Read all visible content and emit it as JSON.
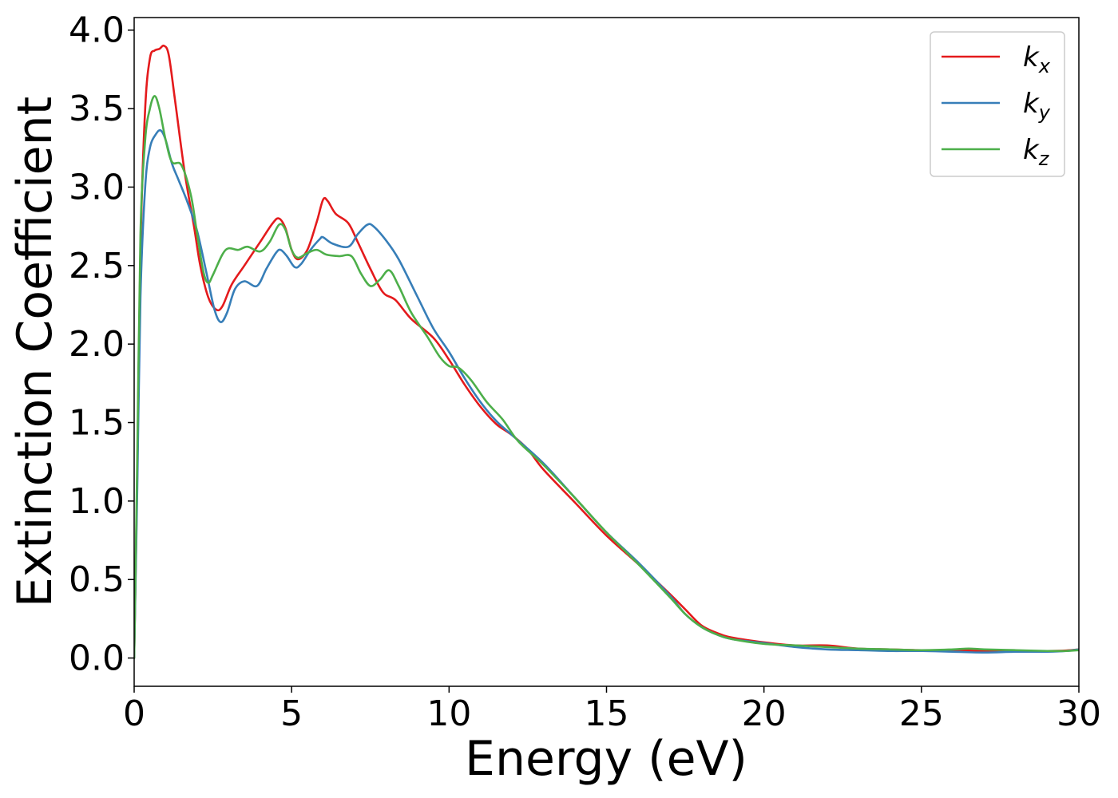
{
  "chart_data": {
    "type": "line",
    "title": "",
    "xlabel": "Energy (eV)",
    "ylabel": "Extinction Coefficient",
    "xlim": [
      0,
      30
    ],
    "ylim": [
      -0.18,
      4.08
    ],
    "xticks": [
      0,
      5,
      10,
      15,
      20,
      25,
      30
    ],
    "xtick_labels": [
      "0",
      "5",
      "10",
      "15",
      "20",
      "25",
      "30"
    ],
    "yticks": [
      0.0,
      0.5,
      1.0,
      1.5,
      2.0,
      2.5,
      3.0,
      3.5,
      4.0
    ],
    "ytick_labels": [
      "0.0",
      "0.5",
      "1.0",
      "1.5",
      "2.0",
      "2.5",
      "3.0",
      "3.5",
      "4.0"
    ],
    "grid": false,
    "legend_position": "top-right",
    "series": [
      {
        "name": "k_x",
        "label_base": "k",
        "label_sub": "x",
        "color": "#e41a1c",
        "points": [
          [
            0,
            0
          ],
          [
            0.1,
            1.2
          ],
          [
            0.2,
            2.6
          ],
          [
            0.35,
            3.5
          ],
          [
            0.5,
            3.82
          ],
          [
            0.65,
            3.87
          ],
          [
            0.8,
            3.88
          ],
          [
            0.95,
            3.9
          ],
          [
            1.1,
            3.84
          ],
          [
            1.3,
            3.55
          ],
          [
            1.6,
            3.1
          ],
          [
            1.9,
            2.75
          ],
          [
            2.1,
            2.5
          ],
          [
            2.35,
            2.3
          ],
          [
            2.6,
            2.22
          ],
          [
            2.8,
            2.24
          ],
          [
            3.1,
            2.38
          ],
          [
            3.5,
            2.5
          ],
          [
            4.0,
            2.65
          ],
          [
            4.4,
            2.77
          ],
          [
            4.6,
            2.8
          ],
          [
            4.8,
            2.74
          ],
          [
            5.0,
            2.6
          ],
          [
            5.2,
            2.54
          ],
          [
            5.5,
            2.6
          ],
          [
            5.8,
            2.78
          ],
          [
            6.0,
            2.92
          ],
          [
            6.15,
            2.91
          ],
          [
            6.4,
            2.83
          ],
          [
            6.8,
            2.77
          ],
          [
            7.1,
            2.65
          ],
          [
            7.5,
            2.48
          ],
          [
            7.9,
            2.33
          ],
          [
            8.3,
            2.28
          ],
          [
            8.8,
            2.16
          ],
          [
            9.5,
            2.04
          ],
          [
            10.0,
            1.9
          ],
          [
            10.5,
            1.74
          ],
          [
            11.0,
            1.6
          ],
          [
            11.5,
            1.49
          ],
          [
            12.0,
            1.42
          ],
          [
            12.5,
            1.33
          ],
          [
            13.0,
            1.2
          ],
          [
            14.0,
            0.99
          ],
          [
            15.0,
            0.78
          ],
          [
            16.0,
            0.6
          ],
          [
            17.0,
            0.41
          ],
          [
            17.5,
            0.31
          ],
          [
            18.0,
            0.21
          ],
          [
            18.5,
            0.16
          ],
          [
            19.0,
            0.13
          ],
          [
            20.0,
            0.1
          ],
          [
            21.0,
            0.08
          ],
          [
            22.0,
            0.08
          ],
          [
            23.0,
            0.06
          ],
          [
            24.0,
            0.055
          ],
          [
            25.0,
            0.05
          ],
          [
            26.0,
            0.05
          ],
          [
            27.0,
            0.045
          ],
          [
            28.0,
            0.045
          ],
          [
            29.0,
            0.045
          ],
          [
            29.6,
            0.048
          ],
          [
            30.0,
            0.055
          ]
        ]
      },
      {
        "name": "k_y",
        "label_base": "k",
        "label_sub": "y",
        "color": "#377eb8",
        "points": [
          [
            0,
            0
          ],
          [
            0.1,
            1.1
          ],
          [
            0.2,
            2.3
          ],
          [
            0.35,
            3.0
          ],
          [
            0.5,
            3.25
          ],
          [
            0.7,
            3.34
          ],
          [
            0.85,
            3.36
          ],
          [
            1.0,
            3.3
          ],
          [
            1.2,
            3.15
          ],
          [
            1.4,
            3.05
          ],
          [
            1.7,
            2.9
          ],
          [
            2.0,
            2.72
          ],
          [
            2.3,
            2.45
          ],
          [
            2.55,
            2.22
          ],
          [
            2.75,
            2.14
          ],
          [
            2.95,
            2.2
          ],
          [
            3.2,
            2.35
          ],
          [
            3.5,
            2.4
          ],
          [
            3.9,
            2.37
          ],
          [
            4.2,
            2.48
          ],
          [
            4.5,
            2.58
          ],
          [
            4.65,
            2.6
          ],
          [
            4.85,
            2.56
          ],
          [
            5.1,
            2.49
          ],
          [
            5.3,
            2.51
          ],
          [
            5.6,
            2.6
          ],
          [
            5.9,
            2.67
          ],
          [
            6.0,
            2.68
          ],
          [
            6.3,
            2.64
          ],
          [
            6.8,
            2.62
          ],
          [
            7.1,
            2.7
          ],
          [
            7.4,
            2.76
          ],
          [
            7.6,
            2.75
          ],
          [
            8.0,
            2.66
          ],
          [
            8.4,
            2.54
          ],
          [
            9.0,
            2.3
          ],
          [
            9.5,
            2.1
          ],
          [
            10.0,
            1.95
          ],
          [
            10.5,
            1.78
          ],
          [
            11.0,
            1.63
          ],
          [
            11.5,
            1.51
          ],
          [
            12.0,
            1.42
          ],
          [
            13.0,
            1.24
          ],
          [
            14.0,
            1.02
          ],
          [
            15.0,
            0.8
          ],
          [
            16.0,
            0.61
          ],
          [
            17.0,
            0.4
          ],
          [
            17.5,
            0.28
          ],
          [
            18.0,
            0.2
          ],
          [
            18.5,
            0.15
          ],
          [
            19.0,
            0.12
          ],
          [
            20.0,
            0.095
          ],
          [
            21.0,
            0.07
          ],
          [
            22.0,
            0.055
          ],
          [
            23.0,
            0.05
          ],
          [
            24.0,
            0.045
          ],
          [
            25.0,
            0.045
          ],
          [
            26.0,
            0.04
          ],
          [
            27.0,
            0.035
          ],
          [
            28.0,
            0.04
          ],
          [
            29.0,
            0.04
          ],
          [
            29.6,
            0.045
          ],
          [
            30.0,
            0.055
          ]
        ]
      },
      {
        "name": "k_z",
        "label_base": "k",
        "label_sub": "z",
        "color": "#4daf4a",
        "points": [
          [
            0,
            0
          ],
          [
            0.1,
            1.3
          ],
          [
            0.2,
            2.7
          ],
          [
            0.35,
            3.3
          ],
          [
            0.5,
            3.5
          ],
          [
            0.65,
            3.58
          ],
          [
            0.8,
            3.5
          ],
          [
            1.0,
            3.3
          ],
          [
            1.2,
            3.16
          ],
          [
            1.5,
            3.14
          ],
          [
            1.8,
            2.95
          ],
          [
            2.0,
            2.7
          ],
          [
            2.2,
            2.46
          ],
          [
            2.35,
            2.39
          ],
          [
            2.5,
            2.44
          ],
          [
            2.8,
            2.57
          ],
          [
            3.0,
            2.61
          ],
          [
            3.3,
            2.6
          ],
          [
            3.6,
            2.62
          ],
          [
            4.0,
            2.59
          ],
          [
            4.3,
            2.65
          ],
          [
            4.6,
            2.76
          ],
          [
            4.8,
            2.73
          ],
          [
            5.0,
            2.6
          ],
          [
            5.2,
            2.55
          ],
          [
            5.5,
            2.58
          ],
          [
            5.8,
            2.6
          ],
          [
            6.1,
            2.57
          ],
          [
            6.5,
            2.56
          ],
          [
            6.9,
            2.56
          ],
          [
            7.2,
            2.45
          ],
          [
            7.5,
            2.37
          ],
          [
            7.8,
            2.41
          ],
          [
            8.1,
            2.47
          ],
          [
            8.4,
            2.37
          ],
          [
            8.8,
            2.2
          ],
          [
            9.3,
            2.05
          ],
          [
            9.7,
            1.92
          ],
          [
            10.0,
            1.86
          ],
          [
            10.3,
            1.85
          ],
          [
            10.7,
            1.77
          ],
          [
            11.2,
            1.63
          ],
          [
            11.7,
            1.52
          ],
          [
            12.2,
            1.38
          ],
          [
            13.0,
            1.23
          ],
          [
            14.0,
            1.02
          ],
          [
            15.0,
            0.8
          ],
          [
            16.0,
            0.6
          ],
          [
            17.0,
            0.39
          ],
          [
            17.5,
            0.28
          ],
          [
            18.0,
            0.2
          ],
          [
            18.5,
            0.15
          ],
          [
            19.0,
            0.12
          ],
          [
            20.0,
            0.09
          ],
          [
            21.0,
            0.08
          ],
          [
            22.0,
            0.07
          ],
          [
            23.0,
            0.06
          ],
          [
            24.0,
            0.055
          ],
          [
            25.0,
            0.05
          ],
          [
            26.0,
            0.055
          ],
          [
            26.5,
            0.06
          ],
          [
            27.0,
            0.055
          ],
          [
            28.0,
            0.05
          ],
          [
            29.0,
            0.045
          ],
          [
            29.6,
            0.045
          ],
          [
            30.0,
            0.05
          ]
        ]
      }
    ]
  }
}
